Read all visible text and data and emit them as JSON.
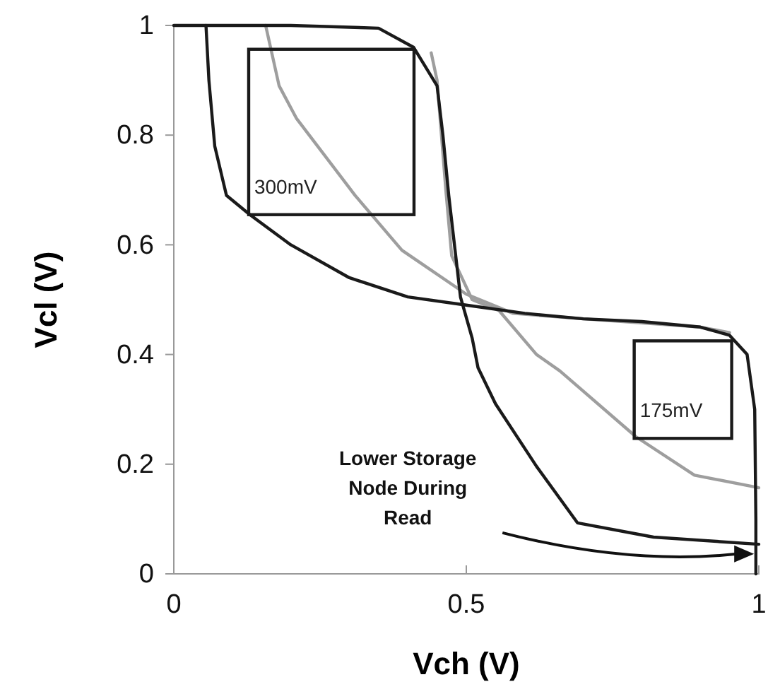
{
  "chart_data": {
    "type": "line",
    "xlabel": "Vch (V)",
    "ylabel": "Vcl (V)",
    "xlim": [
      0,
      1
    ],
    "ylim": [
      0,
      1
    ],
    "xticks": [
      0,
      0.5,
      1
    ],
    "yticks": [
      0,
      0.2,
      0.4,
      0.6,
      0.8,
      1
    ],
    "grid": false,
    "marker": "none",
    "line_style": "solid",
    "series": [
      {
        "color": "#9e9e9e",
        "x": [
          0.157,
          0.18,
          0.21,
          0.31,
          0.39,
          0.5,
          0.58,
          0.7,
          0.9,
          0.95
        ],
        "values": [
          1,
          0.89,
          0.83,
          0.69,
          0.59,
          0.51,
          0.475,
          0.465,
          0.45,
          0.44
        ]
      },
      {
        "color": "#9e9e9e",
        "x": [
          0.44,
          0.45,
          0.465,
          0.475,
          0.51,
          0.556,
          0.62,
          0.66,
          0.79,
          0.89,
          1
        ],
        "values": [
          0.95,
          0.9,
          0.7,
          0.58,
          0.5,
          0.48,
          0.4,
          0.37,
          0.25,
          0.18,
          0.157
        ]
      },
      {
        "color": "#1a1a1a",
        "x": [
          0.055,
          0.06,
          0.07,
          0.09,
          0.13,
          0.2,
          0.3,
          0.4,
          0.5,
          0.6,
          0.7,
          0.8,
          0.9,
          0.95,
          0.98,
          0.993,
          0.995,
          0.995
        ],
        "values": [
          1,
          0.9,
          0.78,
          0.69,
          0.655,
          0.6,
          0.54,
          0.505,
          0.49,
          0.475,
          0.465,
          0.46,
          0.45,
          0.435,
          0.4,
          0.3,
          0.1,
          0
        ]
      },
      {
        "color": "#1a1a1a",
        "x": [
          0,
          0.2,
          0.35,
          0.41,
          0.45,
          0.46,
          0.47,
          0.49,
          0.51,
          0.52,
          0.55,
          0.62,
          0.69,
          0.82,
          1
        ],
        "values": [
          1,
          1,
          0.995,
          0.96,
          0.89,
          0.8,
          0.69,
          0.505,
          0.43,
          0.376,
          0.31,
          0.196,
          0.093,
          0.067,
          0.054
        ]
      }
    ],
    "annotations": [
      {
        "text": "300mV",
        "x": 0.128,
        "y": 0.655
      },
      {
        "text": "175mV",
        "x": 0.787,
        "y": 0.247
      },
      "Lower Storage Node During Read"
    ]
  }
}
